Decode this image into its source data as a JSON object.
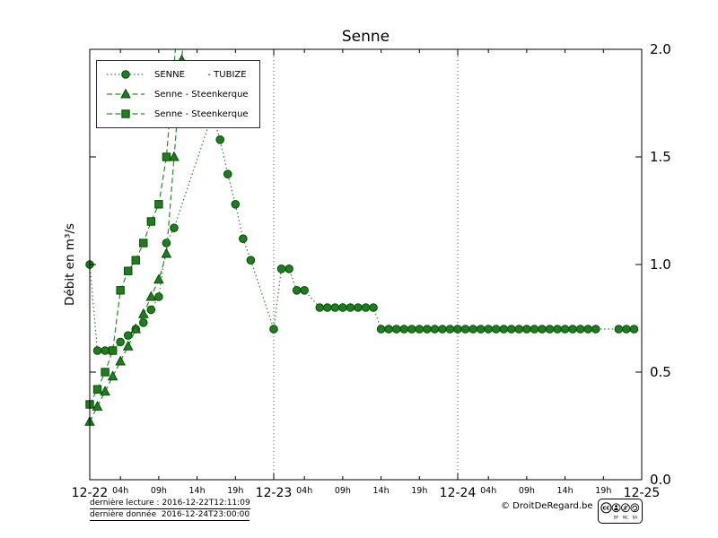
{
  "title": "Senne",
  "colors": {
    "line": "#2a8a2a",
    "marker_fill": "#1e7e1e",
    "marker_edge": "#0a4a0a",
    "grid": "#555555",
    "axis": "#000000"
  },
  "y_axis": {
    "label": "Débit en m³/s",
    "ticks": [
      0.0,
      0.5,
      1.0,
      1.5,
      2.0
    ],
    "tick_labels": [
      "0.0",
      "0.5",
      "1.0",
      "1.5",
      "2.0"
    ],
    "range": [
      0,
      2
    ]
  },
  "x_axis": {
    "day_labels": [
      "12-22",
      "12-23",
      "12-24",
      "12-25"
    ],
    "hour_labels": [
      "04h",
      "09h",
      "14h",
      "19h"
    ],
    "hour_offsets": [
      4,
      9,
      14,
      19
    ],
    "range_hours": [
      0,
      72
    ],
    "grid_hours": [
      24,
      48
    ]
  },
  "legend": [
    {
      "label": "SENNE        - TUBIZE",
      "marker": "circle",
      "linestyle": "dotted"
    },
    {
      "label": "Senne - Steenkerque",
      "marker": "triangle",
      "linestyle": "dashed"
    },
    {
      "label": "Senne - Steenkerque",
      "marker": "square",
      "linestyle": "dashed"
    }
  ],
  "chart_data": {
    "type": "line",
    "title": "Senne",
    "xlabel": "",
    "ylabel": "Débit en m³/s",
    "xlim": [
      0,
      72
    ],
    "ylim": [
      0,
      2
    ],
    "x_unit": "hours since 2016-12-22 00:00",
    "legend_position": "upper left",
    "grid": "vertical dotted at day boundaries",
    "series": [
      {
        "name": "SENNE - TUBIZE",
        "marker": "circle",
        "linestyle": "dotted",
        "points": [
          [
            0,
            1.0
          ],
          [
            1,
            0.6
          ],
          [
            2,
            0.6
          ],
          [
            3,
            0.6
          ],
          [
            4,
            0.64
          ],
          [
            5,
            0.67
          ],
          [
            6,
            0.7
          ],
          [
            7,
            0.73
          ],
          [
            8,
            0.79
          ],
          [
            9,
            0.85
          ],
          [
            10,
            1.1
          ],
          [
            11,
            1.17
          ],
          [
            16,
            1.7
          ],
          [
            17,
            1.58
          ],
          [
            18,
            1.42
          ],
          [
            19,
            1.28
          ],
          [
            20,
            1.12
          ],
          [
            21,
            1.02
          ],
          [
            24,
            0.7
          ],
          [
            25,
            0.98
          ],
          [
            26,
            0.98
          ],
          [
            27,
            0.88
          ],
          [
            28,
            0.88
          ],
          [
            30,
            0.8
          ],
          [
            31,
            0.8
          ],
          [
            32,
            0.8
          ],
          [
            33,
            0.8
          ],
          [
            34,
            0.8
          ],
          [
            35,
            0.8
          ],
          [
            36,
            0.8
          ],
          [
            37,
            0.8
          ],
          [
            38,
            0.7
          ],
          [
            39,
            0.7
          ],
          [
            40,
            0.7
          ],
          [
            41,
            0.7
          ],
          [
            42,
            0.7
          ],
          [
            43,
            0.7
          ],
          [
            44,
            0.7
          ],
          [
            45,
            0.7
          ],
          [
            46,
            0.7
          ],
          [
            47,
            0.7
          ],
          [
            48,
            0.7
          ],
          [
            49,
            0.7
          ],
          [
            50,
            0.7
          ],
          [
            51,
            0.7
          ],
          [
            52,
            0.7
          ],
          [
            53,
            0.7
          ],
          [
            54,
            0.7
          ],
          [
            55,
            0.7
          ],
          [
            56,
            0.7
          ],
          [
            57,
            0.7
          ],
          [
            58,
            0.7
          ],
          [
            59,
            0.7
          ],
          [
            60,
            0.7
          ],
          [
            61,
            0.7
          ],
          [
            62,
            0.7
          ],
          [
            63,
            0.7
          ],
          [
            64,
            0.7
          ],
          [
            65,
            0.7
          ],
          [
            66,
            0.7
          ],
          [
            69,
            0.7
          ],
          [
            70,
            0.7
          ],
          [
            71,
            0.7
          ]
        ]
      },
      {
        "name": "Senne - Steenkerque",
        "marker": "triangle",
        "linestyle": "dashed",
        "points": [
          [
            0,
            0.27
          ],
          [
            1,
            0.34
          ],
          [
            2,
            0.41
          ],
          [
            3,
            0.48
          ],
          [
            4,
            0.55
          ],
          [
            5,
            0.62
          ],
          [
            6,
            0.7
          ],
          [
            7,
            0.77
          ],
          [
            8,
            0.85
          ],
          [
            9,
            0.93
          ],
          [
            10,
            1.05
          ],
          [
            11,
            1.5
          ],
          [
            12,
            1.95
          ],
          [
            13,
            2.4
          ]
        ]
      },
      {
        "name": "Senne - Steenkerque",
        "marker": "square",
        "linestyle": "dashed",
        "points": [
          [
            0,
            0.35
          ],
          [
            1,
            0.42
          ],
          [
            2,
            0.5
          ],
          [
            3,
            0.6
          ],
          [
            4,
            0.88
          ],
          [
            5,
            0.97
          ],
          [
            6,
            1.02
          ],
          [
            7,
            1.1
          ],
          [
            8,
            1.2
          ],
          [
            9,
            1.28
          ],
          [
            10,
            1.5
          ],
          [
            11,
            1.92
          ],
          [
            12,
            2.4
          ]
        ]
      }
    ]
  },
  "footer": {
    "line1": "dernière lecture : 2016-12-22T12:11:09",
    "line2": "dernière donnée  2016-12-24T23:00:00",
    "copyright": "© DroitDeRegard.be",
    "license": "CC BY-NC-SA",
    "license_parts": [
      "BY",
      "NC",
      "SA"
    ]
  }
}
